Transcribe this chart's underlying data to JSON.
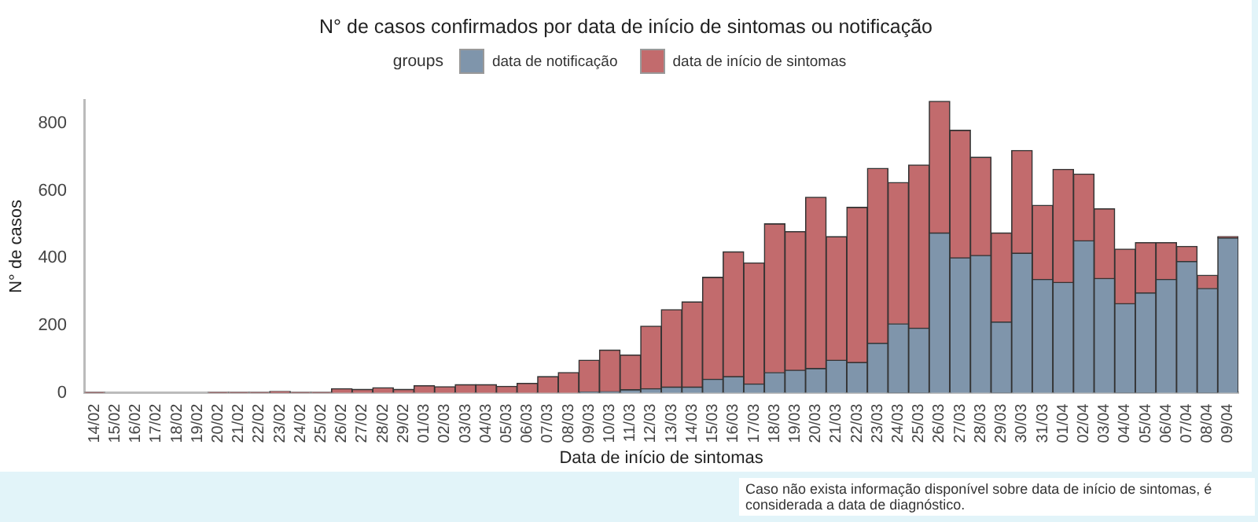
{
  "chart_data": {
    "type": "bar",
    "stacked": true,
    "title": "N° de casos confirmados por data de início de sintomas ou notificação",
    "xlabel": "Data de início de sintomas",
    "ylabel": "N° de casos",
    "legend_title": "groups",
    "legend": "top",
    "grid": false,
    "categories": [
      "14/02",
      "15/02",
      "16/02",
      "17/02",
      "18/02",
      "19/02",
      "20/02",
      "21/02",
      "22/02",
      "23/02",
      "24/02",
      "25/02",
      "26/02",
      "27/02",
      "28/02",
      "29/02",
      "01/03",
      "02/03",
      "03/03",
      "04/03",
      "05/03",
      "06/03",
      "07/03",
      "08/03",
      "09/03",
      "10/03",
      "11/03",
      "12/03",
      "13/03",
      "14/03",
      "15/03",
      "16/03",
      "17/03",
      "18/03",
      "19/03",
      "20/03",
      "21/03",
      "22/03",
      "23/03",
      "24/03",
      "25/03",
      "26/03",
      "27/03",
      "28/03",
      "29/03",
      "30/03",
      "31/03",
      "01/04",
      "02/04",
      "03/04",
      "04/04",
      "05/04",
      "06/04",
      "07/04",
      "08/04",
      "09/04"
    ],
    "series": [
      {
        "name": "data de notificação",
        "color": "#7f95ab",
        "values": [
          0,
          0,
          0,
          0,
          0,
          0,
          0,
          0,
          0,
          0,
          0,
          0,
          0,
          0,
          0,
          0,
          0,
          0,
          0,
          0,
          0,
          0,
          0,
          0,
          2,
          3,
          9,
          12,
          17,
          17,
          40,
          48,
          26,
          60,
          67,
          72,
          97,
          90,
          147,
          205,
          192,
          475,
          401,
          408,
          210,
          415,
          337,
          328,
          452,
          340,
          265,
          297,
          337,
          390,
          310,
          460
        ]
      },
      {
        "name": "data de início de sintomas",
        "color": "#c26b6d",
        "values": [
          1,
          0,
          0,
          0,
          0,
          0,
          1,
          1,
          1,
          4,
          1,
          1,
          12,
          10,
          15,
          10,
          21,
          18,
          24,
          24,
          19,
          28,
          48,
          60,
          95,
          124,
          103,
          186,
          230,
          253,
          303,
          371,
          360,
          442,
          412,
          509,
          367,
          461,
          520,
          420,
          485,
          391,
          379,
          292,
          265,
          305,
          220,
          336,
          198,
          207,
          162,
          149,
          109,
          45,
          39,
          4
        ]
      }
    ],
    "ylim": [
      0,
      870
    ],
    "yticks": [
      0,
      200,
      400,
      600,
      800
    ],
    "annotations": [
      "Caso não exista informação disponível sobre data de início de sintomas, é considerada a data de diagnóstico."
    ]
  }
}
